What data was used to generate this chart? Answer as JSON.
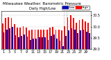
{
  "title": "Milwaukee Weather: Barometric Pressure",
  "subtitle": "Daily High/Low",
  "ylim": [
    29.0,
    30.7
  ],
  "bar_width": 0.42,
  "legend_high": "High",
  "legend_low": "Low",
  "color_high": "#FF0000",
  "color_low": "#0000BB",
  "background": "#FFFFFF",
  "days": [
    1,
    2,
    3,
    4,
    5,
    6,
    7,
    8,
    9,
    10,
    11,
    12,
    13,
    14,
    15,
    16,
    17,
    18,
    19,
    20,
    21,
    22,
    23,
    24,
    25,
    26,
    27,
    28,
    29,
    30
  ],
  "high": [
    30.15,
    30.38,
    30.4,
    30.38,
    30.12,
    29.95,
    29.95,
    30.02,
    29.95,
    29.82,
    29.88,
    29.85,
    29.88,
    29.88,
    29.88,
    29.85,
    29.95,
    30.0,
    29.88,
    29.85,
    29.82,
    30.02,
    30.42,
    30.52,
    30.38,
    30.18,
    30.28,
    30.32,
    30.22,
    30.18
  ],
  "low": [
    29.75,
    29.88,
    29.92,
    30.0,
    29.62,
    29.52,
    29.58,
    29.65,
    29.55,
    29.42,
    29.48,
    29.48,
    29.52,
    29.52,
    29.52,
    29.42,
    29.58,
    29.65,
    29.48,
    29.38,
    29.12,
    29.58,
    29.82,
    29.92,
    29.88,
    29.72,
    29.82,
    29.88,
    29.78,
    29.72
  ],
  "dotted_vlines_x": [
    20.5,
    21.5
  ],
  "yticks": [
    29.0,
    29.5,
    30.0,
    30.5
  ],
  "title_fontsize": 4.0,
  "tick_fontsize": 3.5
}
